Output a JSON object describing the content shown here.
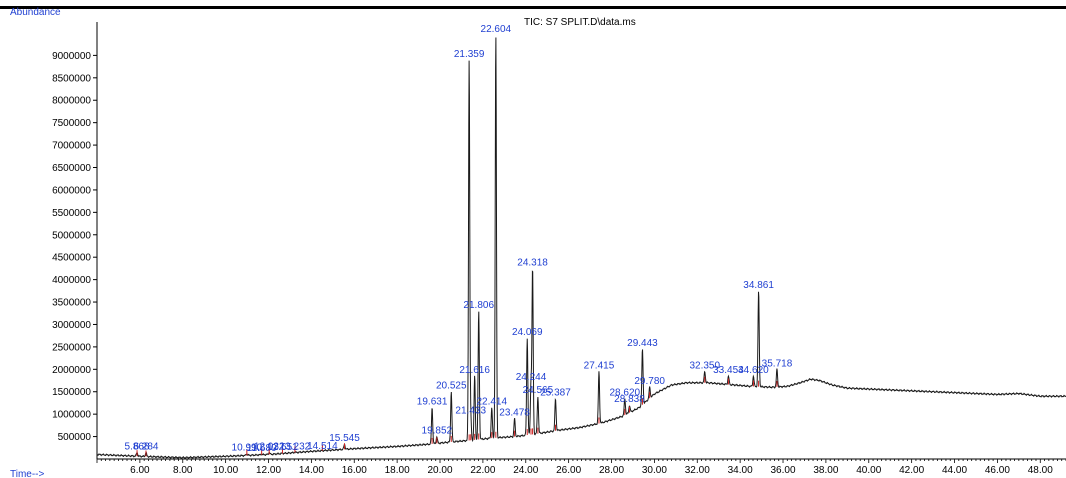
{
  "header": {
    "y_label": "Abundance",
    "title": "TIC: S7 SPLIT.D\\data.ms",
    "x_label": "Time-->"
  },
  "colors": {
    "axis": "#000000",
    "signal": "#1a1a1a",
    "label": "#1f3fd1",
    "baseline_mark": "#d02020"
  },
  "chart_data": {
    "type": "line",
    "title": "TIC: S7 SPLIT.D\\data.ms",
    "xlabel": "Time-->",
    "ylabel": "Abundance",
    "xlim": [
      4.0,
      49.2
    ],
    "ylim": [
      0,
      9700000
    ],
    "x_ticks": [
      "6.00",
      "8.00",
      "10.00",
      "12.00",
      "14.00",
      "16.00",
      "18.00",
      "20.00",
      "22.00",
      "24.00",
      "26.00",
      "28.00",
      "30.00",
      "32.00",
      "34.00",
      "36.00",
      "38.00",
      "40.00",
      "42.00",
      "44.00",
      "46.00",
      "48.00"
    ],
    "y_ticks": [
      "500000",
      "1000000",
      "1500000",
      "2000000",
      "2500000",
      "3000000",
      "3500000",
      "4000000",
      "4500000",
      "5000000",
      "5500000",
      "6000000",
      "6500000",
      "7000000",
      "7500000",
      "8000000",
      "8500000",
      "9000000"
    ],
    "grid": false,
    "baseline": [
      [
        4.0,
        100000
      ],
      [
        6.0,
        60000
      ],
      [
        8.0,
        30000
      ],
      [
        10.0,
        60000
      ],
      [
        12.0,
        100000
      ],
      [
        14.0,
        170000
      ],
      [
        16.0,
        230000
      ],
      [
        18.0,
        280000
      ],
      [
        19.5,
        330000
      ],
      [
        20.5,
        380000
      ],
      [
        21.5,
        420000
      ],
      [
        22.5,
        470000
      ],
      [
        23.5,
        500000
      ],
      [
        24.5,
        560000
      ],
      [
        25.5,
        640000
      ],
      [
        26.5,
        700000
      ],
      [
        27.5,
        800000
      ],
      [
        28.5,
        950000
      ],
      [
        29.3,
        1150000
      ],
      [
        30.0,
        1450000
      ],
      [
        30.8,
        1650000
      ],
      [
        31.5,
        1700000
      ],
      [
        32.5,
        1700000
      ],
      [
        33.5,
        1660000
      ],
      [
        34.5,
        1620000
      ],
      [
        35.5,
        1600000
      ],
      [
        36.2,
        1620000
      ],
      [
        36.8,
        1700000
      ],
      [
        37.3,
        1780000
      ],
      [
        37.7,
        1750000
      ],
      [
        38.3,
        1650000
      ],
      [
        39.0,
        1580000
      ],
      [
        40.0,
        1560000
      ],
      [
        42.0,
        1520000
      ],
      [
        44.0,
        1480000
      ],
      [
        46.0,
        1440000
      ],
      [
        47.0,
        1460000
      ],
      [
        48.0,
        1400000
      ],
      [
        49.2,
        1400000
      ]
    ],
    "peaks": [
      {
        "label": "5.868",
        "x": 5.868,
        "y": 150000
      },
      {
        "label": "6.284",
        "x": 6.284,
        "y": 150000
      },
      {
        "label": "10.990",
        "x": 10.99,
        "y": 120000
      },
      {
        "label": "11.680",
        "x": 11.68,
        "y": 110000
      },
      {
        "label": "12.032",
        "x": 12.032,
        "y": 150000
      },
      {
        "label": "12.651",
        "x": 12.651,
        "y": 130000
      },
      {
        "label": "13.232",
        "x": 13.232,
        "y": 150000
      },
      {
        "label": "14.514",
        "x": 14.514,
        "y": 160000
      },
      {
        "label": "15.545",
        "x": 15.545,
        "y": 330000
      },
      {
        "label": "19.631",
        "x": 19.631,
        "y": 1150000
      },
      {
        "label": "19.852",
        "x": 19.852,
        "y": 500000
      },
      {
        "label": "20.525",
        "x": 20.525,
        "y": 1500000
      },
      {
        "label": "21.359",
        "x": 21.359,
        "y": 8900000
      },
      {
        "label": "21.433",
        "x": 21.433,
        "y": 950000
      },
      {
        "label": "21.616",
        "x": 21.616,
        "y": 1850000
      },
      {
        "label": "21.806",
        "x": 21.806,
        "y": 3300000
      },
      {
        "label": "22.414",
        "x": 22.414,
        "y": 1150000
      },
      {
        "label": "22.604",
        "x": 22.604,
        "y": 9450000
      },
      {
        "label": "23.478",
        "x": 23.478,
        "y": 900000
      },
      {
        "label": "24.069",
        "x": 24.069,
        "y": 2700000
      },
      {
        "label": "24.244",
        "x": 24.244,
        "y": 1700000
      },
      {
        "label": "24.318",
        "x": 24.318,
        "y": 4250000
      },
      {
        "label": "24.565",
        "x": 24.565,
        "y": 1400000
      },
      {
        "label": "25.387",
        "x": 25.387,
        "y": 1350000
      },
      {
        "label": "27.415",
        "x": 27.415,
        "y": 1950000
      },
      {
        "label": "28.620",
        "x": 28.62,
        "y": 1350000
      },
      {
        "label": "28.838",
        "x": 28.838,
        "y": 1200000
      },
      {
        "label": "29.443",
        "x": 29.443,
        "y": 2450000
      },
      {
        "label": "29.780",
        "x": 29.78,
        "y": 1600000
      },
      {
        "label": "32.350",
        "x": 32.35,
        "y": 1950000
      },
      {
        "label": "33.454",
        "x": 33.454,
        "y": 1850000
      },
      {
        "label": "34.620",
        "x": 34.62,
        "y": 1850000
      },
      {
        "label": "34.861",
        "x": 34.861,
        "y": 3750000
      },
      {
        "label": "35.718",
        "x": 35.718,
        "y": 2000000
      }
    ]
  }
}
